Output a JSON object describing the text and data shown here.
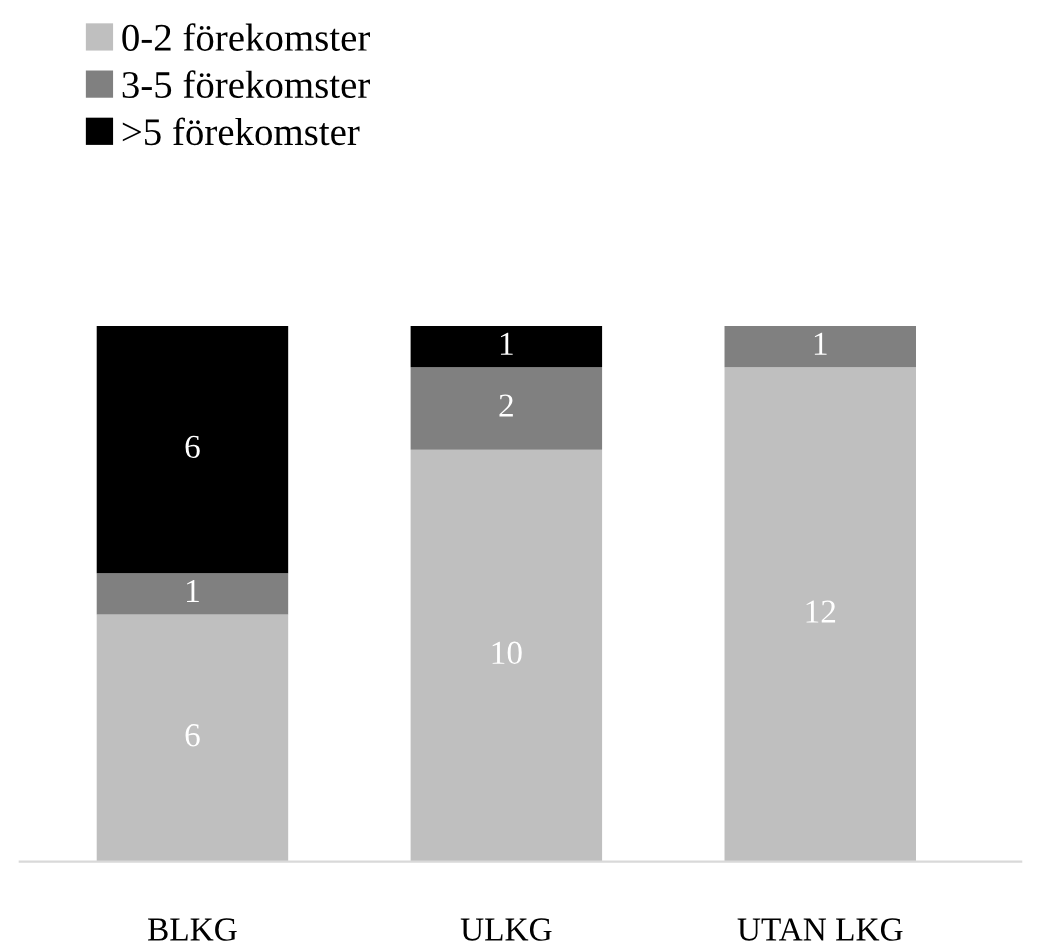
{
  "chart_data": {
    "type": "bar",
    "stacked": true,
    "categories": [
      "BLKG",
      "ULKG",
      "UTAN LKG"
    ],
    "series": [
      {
        "name": "0-2 förekomster",
        "color": "#bfbfbf",
        "values": [
          6,
          10,
          12
        ]
      },
      {
        "name": "3-5 förekomster",
        "color": "#808080",
        "values": [
          1,
          2,
          1
        ]
      },
      {
        "name": ">5 förekomster",
        "color": "#000000",
        "values": [
          6,
          1,
          null
        ]
      }
    ],
    "data_labels": true,
    "legend": "top left",
    "grid": false
  }
}
